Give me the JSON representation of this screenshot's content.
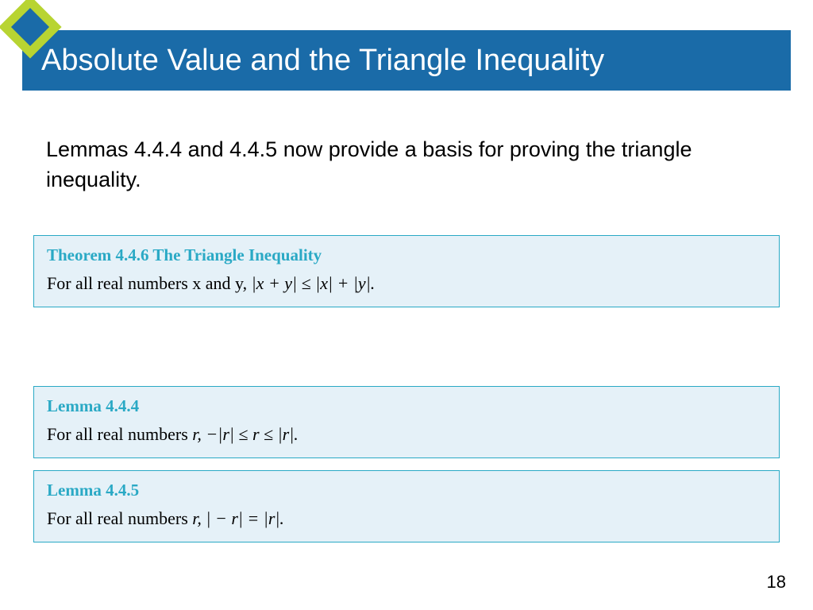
{
  "header": {
    "title": "Absolute Value and the Triangle Inequality"
  },
  "intro": "Lemmas 4.4.4 and 4.4.5 now provide a basis for proving the triangle inequality.",
  "boxes": [
    {
      "title": "Theorem 4.4.6 The Triangle Inequality",
      "body_prefix": "For all real numbers x and y, ",
      "body_math": "|x + y| ≤ |x| + |y|."
    },
    {
      "title": "Lemma 4.4.4",
      "body_prefix": "For all real numbers ",
      "body_math": "r, −|r| ≤ r ≤ |r|."
    },
    {
      "title": "Lemma 4.4.5",
      "body_prefix": "For all real numbers ",
      "body_math": "r,  | − r| = |r|."
    }
  ],
  "page_number": "18",
  "colors": {
    "title_bar_bg": "#1a6ba8",
    "title_text": "#ffffff",
    "diamond_outer": "#b8d432",
    "diamond_inner": "#1a6ba8",
    "box_border": "#2aa9c5",
    "box_bg": "#e5f1f8",
    "box_title": "#2aa9c5",
    "body_text": "#000000"
  }
}
